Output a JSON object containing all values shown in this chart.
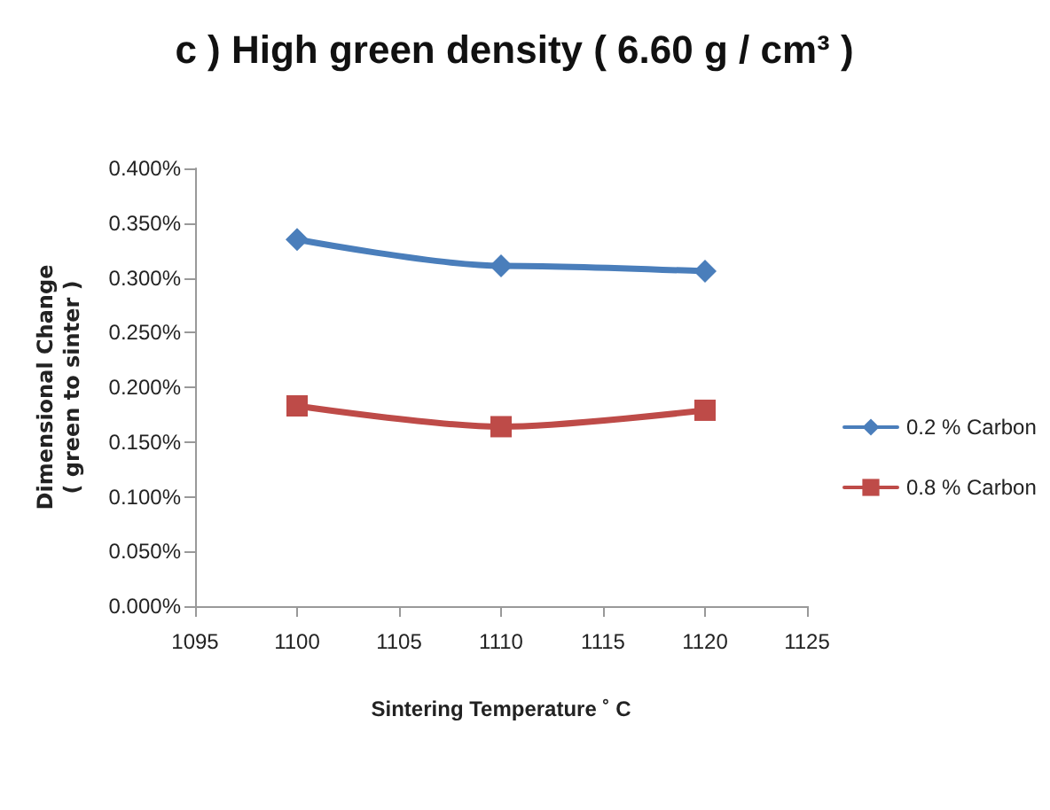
{
  "chart_data": {
    "type": "line",
    "title": "c ) High green density ( 6.60 g / cm³ )",
    "xlabel": "Sintering Temperature ˚ C",
    "ylabel": "Dimensional Change\n( green to sinter )",
    "x": [
      1100,
      1110,
      1120
    ],
    "series": [
      {
        "name": "0.2 % Carbon",
        "color": "#4a7ebb",
        "marker": "diamond",
        "values": [
          0.335,
          0.311,
          0.306
        ]
      },
      {
        "name": "0.8 % Carbon",
        "color": "#be4b48",
        "marker": "square",
        "values": [
          0.183,
          0.164,
          0.179
        ]
      }
    ],
    "xlim": [
      1095,
      1125
    ],
    "xticks": [
      1095,
      1100,
      1105,
      1110,
      1115,
      1120,
      1125
    ],
    "ylim": [
      0,
      0.4
    ],
    "yticks": [
      {
        "value": 0,
        "label": "0.000%"
      },
      {
        "value": 0.05,
        "label": "0.050%"
      },
      {
        "value": 0.1,
        "label": "0.100%"
      },
      {
        "value": 0.15,
        "label": "0.150%"
      },
      {
        "value": 0.2,
        "label": "0.200%"
      },
      {
        "value": 0.25,
        "label": "0.250%"
      },
      {
        "value": 0.3,
        "label": "0.300%"
      },
      {
        "value": 0.35,
        "label": "0.350%"
      },
      {
        "value": 0.4,
        "label": "0.400%"
      }
    ],
    "grid": false,
    "legend": "right",
    "line_style": "solid"
  }
}
